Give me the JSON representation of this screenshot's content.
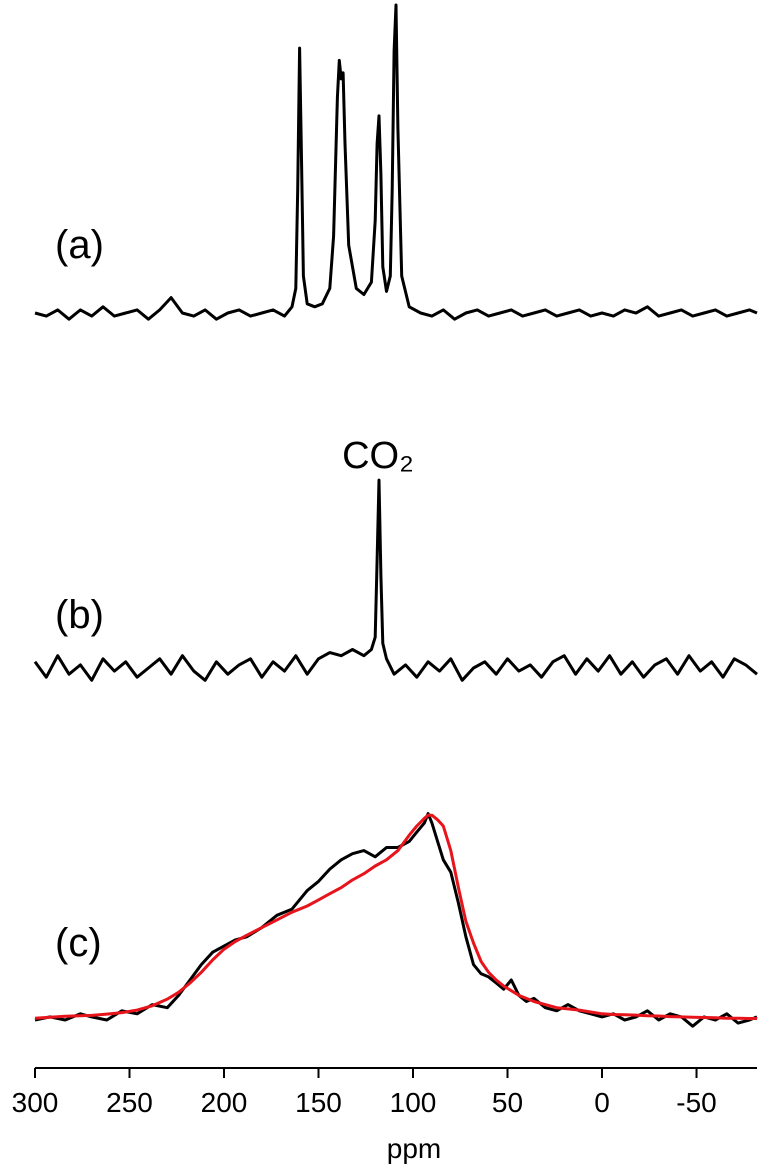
{
  "chart_data": [
    {
      "type": "line",
      "label": "(a)",
      "xlim": [
        300,
        -82
      ],
      "x": [
        300,
        294,
        288,
        282,
        276,
        270,
        264,
        258,
        252,
        246,
        240,
        234,
        228,
        222,
        216,
        210,
        204,
        198,
        192,
        186,
        180,
        174,
        168,
        164,
        162,
        161,
        160,
        159,
        158,
        156,
        152,
        148,
        144,
        142,
        140,
        139,
        138,
        137,
        136,
        134,
        130,
        126,
        122,
        120,
        119,
        118,
        117,
        116,
        114,
        112,
        111,
        110,
        109,
        108,
        106,
        102,
        96,
        90,
        84,
        78,
        72,
        66,
        60,
        54,
        48,
        42,
        36,
        30,
        24,
        18,
        12,
        6,
        0,
        -6,
        -12,
        -18,
        -24,
        -30,
        -36,
        -42,
        -48,
        -54,
        -60,
        -66,
        -72,
        -78,
        -82
      ],
      "series": [
        {
          "color": "#000000",
          "values": [
            0,
            -1,
            1,
            -2,
            1,
            -1,
            2,
            -1,
            0,
            1,
            -2,
            1,
            5,
            0,
            -1,
            1,
            -2,
            0,
            1,
            -1,
            0,
            1,
            -1,
            2,
            8,
            40,
            86,
            50,
            12,
            3,
            2,
            3,
            8,
            25,
            70,
            82,
            76,
            78,
            55,
            22,
            8,
            6,
            10,
            30,
            55,
            64,
            45,
            15,
            7,
            12,
            40,
            85,
            100,
            60,
            12,
            2,
            0,
            -1,
            1,
            -2,
            0,
            1,
            -1,
            0,
            1,
            -1,
            0,
            1,
            -1,
            0,
            1,
            -1,
            0,
            -1,
            1,
            0,
            2,
            -1,
            0,
            1,
            -1,
            0,
            1,
            -1,
            0,
            1,
            0
          ]
        }
      ]
    },
    {
      "type": "line",
      "label": "(b)",
      "peak_label": "CO₂",
      "xlim": [
        300,
        -82
      ],
      "x": [
        300,
        294,
        288,
        282,
        276,
        270,
        264,
        258,
        252,
        246,
        240,
        234,
        228,
        222,
        216,
        210,
        204,
        198,
        192,
        186,
        180,
        174,
        168,
        162,
        156,
        150,
        144,
        138,
        132,
        126,
        122,
        120,
        119,
        118,
        117,
        116,
        114,
        110,
        104,
        98,
        92,
        86,
        80,
        74,
        68,
        62,
        56,
        50,
        44,
        38,
        32,
        26,
        20,
        14,
        8,
        2,
        -4,
        -10,
        -16,
        -22,
        -28,
        -34,
        -40,
        -46,
        -52,
        -58,
        -64,
        -70,
        -76,
        -82
      ],
      "series": [
        {
          "color": "#000000",
          "values": [
            2,
            -3,
            4,
            -2,
            1,
            -4,
            3,
            -1,
            2,
            -3,
            0,
            3,
            -2,
            4,
            -1,
            -4,
            2,
            -2,
            1,
            3,
            -3,
            2,
            -1,
            4,
            -2,
            3,
            5,
            4,
            6,
            4,
            6,
            10,
            35,
            61,
            30,
            8,
            3,
            -2,
            1,
            -3,
            2,
            -1,
            3,
            -4,
            0,
            2,
            -2,
            3,
            -1,
            1,
            -3,
            2,
            4,
            -2,
            3,
            -1,
            4,
            -2,
            2,
            -3,
            1,
            3,
            -2,
            4,
            -1,
            2,
            -3,
            3,
            1,
            -2
          ]
        }
      ]
    },
    {
      "type": "line",
      "label": "(c)",
      "xlim": [
        300,
        -82
      ],
      "xticks": [
        300,
        250,
        200,
        150,
        100,
        50,
        0,
        -50
      ],
      "xlabel": "ppm",
      "x": [
        300,
        292,
        284,
        276,
        270,
        262,
        254,
        246,
        238,
        230,
        224,
        218,
        212,
        206,
        200,
        194,
        188,
        180,
        172,
        164,
        156,
        150,
        144,
        138,
        132,
        126,
        120,
        114,
        108,
        102,
        98,
        94,
        92,
        90,
        87,
        84,
        80,
        76,
        72,
        68,
        64,
        60,
        56,
        52,
        48,
        44,
        40,
        36,
        30,
        24,
        18,
        12,
        6,
        0,
        -6,
        -12,
        -18,
        -24,
        -30,
        -36,
        -42,
        -48,
        -54,
        -60,
        -66,
        -72,
        -78,
        -82
      ],
      "series": [
        {
          "color": "#000000",
          "values": [
            0,
            1,
            0,
            2,
            1,
            0,
            3,
            2,
            5,
            4,
            8,
            13,
            18,
            22,
            24,
            26,
            27,
            30,
            34,
            36,
            42,
            45,
            49,
            52,
            54,
            55,
            53,
            56,
            56,
            58,
            61,
            64,
            67,
            64,
            58,
            52,
            48,
            38,
            27,
            18,
            15,
            14,
            12,
            10,
            13,
            8,
            6,
            7,
            4,
            3,
            5,
            3,
            2,
            1,
            2,
            0,
            1,
            3,
            0,
            2,
            1,
            -2,
            1,
            0,
            2,
            -1,
            0,
            1
          ]
        },
        {
          "color": "#e8141b",
          "values": [
            0.6,
            0.9,
            1.2,
            1.4,
            1.5,
            1.9,
            2.4,
            3.2,
            4.6,
            6.8,
            9,
            12,
            15.5,
            19.5,
            23,
            25.5,
            27.5,
            30,
            32.5,
            35,
            37,
            39,
            41,
            43,
            45.5,
            47.5,
            50,
            52,
            55,
            60,
            63,
            65.5,
            66.5,
            66.5,
            65,
            63,
            55,
            43,
            32,
            25,
            19,
            15.5,
            13,
            11,
            9.5,
            8,
            7,
            6,
            5,
            4,
            3.6,
            3.2,
            2.6,
            2,
            1.8,
            1.7,
            1.6,
            1.4,
            1.3,
            1.1,
            1,
            0.9,
            0.8,
            0.7,
            0.6,
            0.6,
            0.5,
            0.5
          ]
        }
      ]
    }
  ]
}
